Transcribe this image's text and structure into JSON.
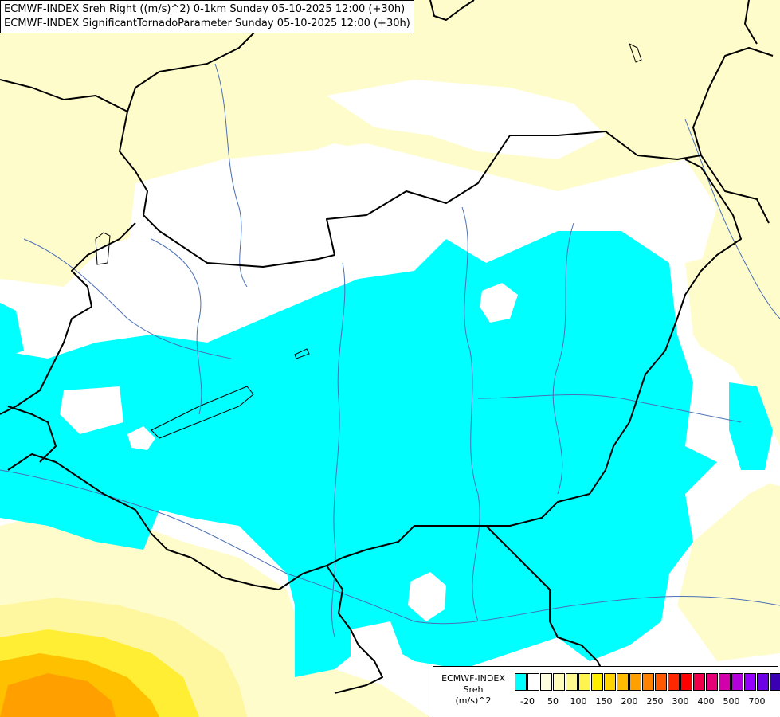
{
  "header": {
    "line1": "ECMWF-INDEX Sreh Right ((m/s)^2) 0-1km Sunday 05-10-2025 12:00 (+30h)",
    "line2": "ECMWF-INDEX SignificantTornadoParameter Sunday 05-10-2025 12:00 (+30h)"
  },
  "legend": {
    "line1": "ECMWF-INDEX",
    "line2": "Sreh",
    "line3": "(m/s)^2",
    "swatch_colors": [
      "#00ffff",
      "#ffffff",
      "#fffde0",
      "#fffbb8",
      "#fff88e",
      "#fff34d",
      "#ffee00",
      "#ffd400",
      "#ffbb00",
      "#ffa000",
      "#ff8200",
      "#ff5a00",
      "#ff2800",
      "#ff0000",
      "#f0004a",
      "#e60078",
      "#d200aa",
      "#b400dc",
      "#9600ff",
      "#6e00e6",
      "#3c00b4",
      "#140078"
    ],
    "ticks": [
      "-20",
      "50",
      "100",
      "150",
      "200",
      "250",
      "300",
      "400",
      "500",
      "700"
    ]
  },
  "colors": {
    "cyan": "#00ffff",
    "pale_yellow": "#fffccc",
    "light_yellow": "#fff8a6",
    "yellow": "#fff000",
    "orange": "#ffb000",
    "dark_orange": "#ff9000",
    "border": "#000000",
    "river": "#4a6fb5"
  }
}
